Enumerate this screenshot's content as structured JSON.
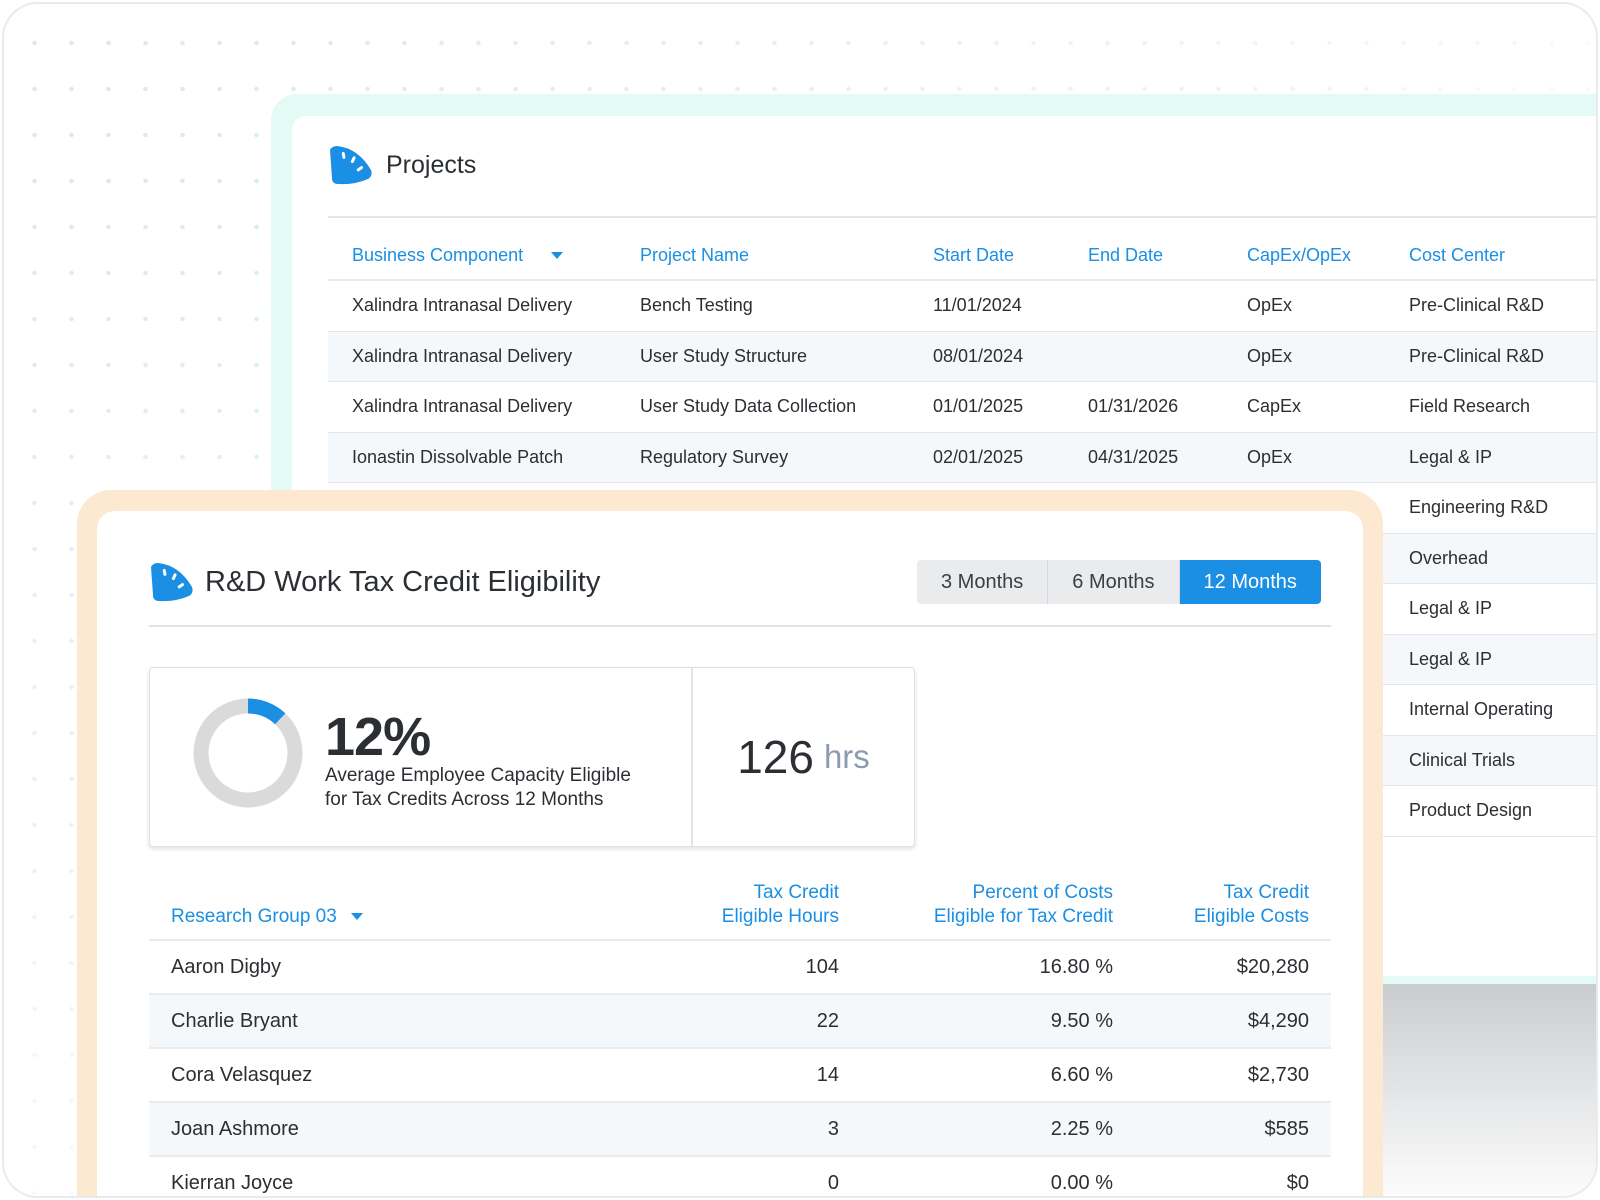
{
  "projects": {
    "title": "Projects",
    "logo_icon": "speedometer-logo-icon",
    "columns": [
      "Business Component",
      "Project Name",
      "Start Date",
      "End Date",
      "CapEx/OpEx",
      "Cost Center"
    ],
    "rows": [
      [
        "Xalindra Intranasal Delivery",
        "Bench Testing",
        "11/01/2024",
        "",
        "OpEx",
        "Pre-Clinical R&D"
      ],
      [
        "Xalindra Intranasal Delivery",
        "User Study Structure",
        "08/01/2024",
        "",
        "OpEx",
        "Pre-Clinical R&D"
      ],
      [
        "Xalindra Intranasal Delivery",
        "User Study Data Collection",
        "01/01/2025",
        "01/31/2026",
        "CapEx",
        "Field Research"
      ],
      [
        "Ionastin Dissolvable Patch",
        "Regulatory Survey",
        "02/01/2025",
        "04/31/2025",
        "OpEx",
        "Legal & IP"
      ],
      [
        "",
        "",
        "",
        "",
        "",
        "Engineering R&D"
      ],
      [
        "",
        "",
        "",
        "",
        "",
        "Overhead"
      ],
      [
        "",
        "",
        "",
        "",
        "",
        "Legal & IP"
      ],
      [
        "",
        "",
        "",
        "",
        "",
        "Legal & IP"
      ],
      [
        "",
        "",
        "",
        "",
        "",
        "Internal Operating"
      ],
      [
        "",
        "",
        "",
        "",
        "",
        "Clinical Trials"
      ],
      [
        "",
        "",
        "",
        "",
        "",
        "Product Design"
      ]
    ]
  },
  "rd": {
    "title": "R&D Work Tax Credit Eligibility",
    "range_options": [
      "3 Months",
      "6 Months",
      "12 Months"
    ],
    "selected_range": "12 Months",
    "stat": {
      "percent": "12%",
      "percent_value": 0.12,
      "description_line1": "Average Employee Capacity Eligible",
      "description_line2": "for Tax Credits Across 12 Months",
      "hours_value": "126",
      "hours_unit": "hrs"
    },
    "table": {
      "group_label": "Research Group 03",
      "col_hours_line1": "Tax Credit",
      "col_hours_line2": "Eligible Hours",
      "col_pct_line1": "Percent of Costs",
      "col_pct_line2": "Eligible for Tax Credit",
      "col_costs_line1": "Tax Credit",
      "col_costs_line2": "Eligible Costs",
      "rows": [
        [
          "Aaron Digby",
          "104",
          "16.80 %",
          "$20,280"
        ],
        [
          "Charlie Bryant",
          "22",
          "9.50 %",
          "$4,290"
        ],
        [
          "Cora Velasquez",
          "14",
          "6.60 %",
          "$2,730"
        ],
        [
          "Joan Ashmore",
          "3",
          "2.25 %",
          "$585"
        ],
        [
          "Kierran Joyce",
          "0",
          "0.00 %",
          "$0"
        ]
      ]
    }
  },
  "colors": {
    "accent": "#1a8fe3",
    "projects_frame": "#e3faf5",
    "rd_frame": "#fde9d1",
    "donut_track": "#dadada"
  }
}
